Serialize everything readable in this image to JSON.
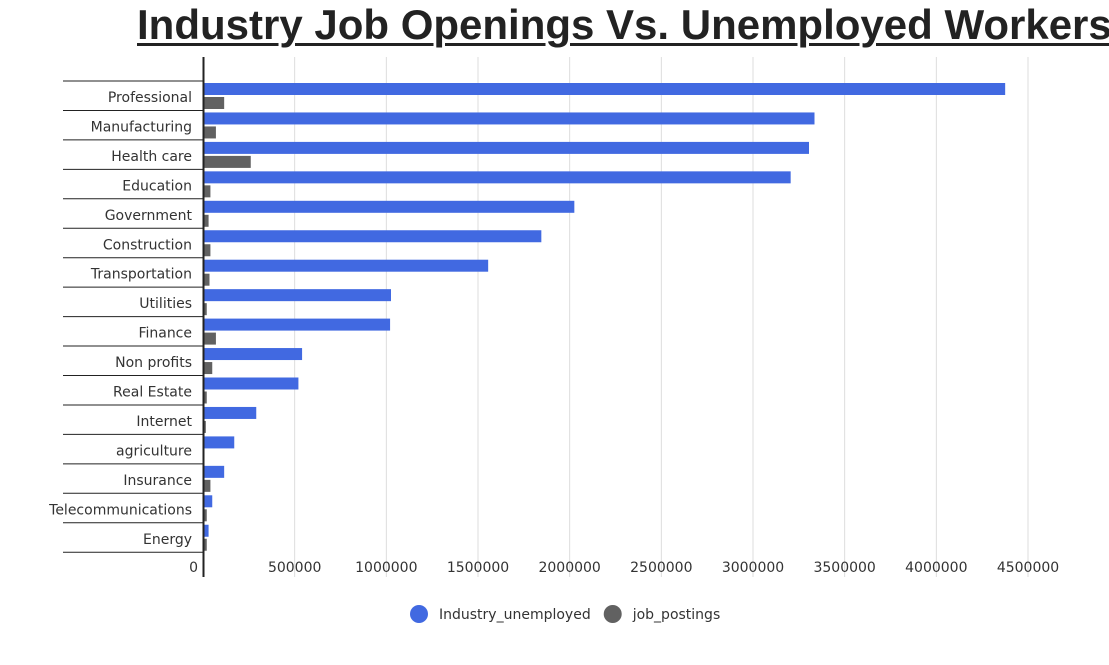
{
  "chart_data": {
    "type": "bar",
    "orientation": "horizontal",
    "title": "Industry Job Openings Vs. Unemployed Workers ",
    "xlabel": "",
    "ylabel": "",
    "xlim": [
      0,
      4500000
    ],
    "grid": true,
    "legend_position": "bottom",
    "x_ticks": [
      "0",
      "500000",
      "1000000",
      "1500000",
      "2000000",
      "2500000",
      "3000000",
      "3500000",
      "4000000",
      "4500000"
    ],
    "categories": [
      "Professional",
      "Manufacturing",
      "Health care",
      "Education",
      "Government",
      "Construction",
      "Transportation",
      "Utilities",
      "Finance",
      "Non profits",
      "Real Estate",
      "Internet",
      "agriculture",
      "Insurance",
      "Telecommunications",
      "Energy"
    ],
    "series": [
      {
        "name": "Industry_unemployed",
        "color": "#4169e1",
        "values": [
          4370000,
          3330000,
          3300000,
          3200000,
          2020000,
          1840000,
          1550000,
          1020000,
          1015000,
          535000,
          515000,
          285000,
          165000,
          110000,
          45000,
          25000
        ]
      },
      {
        "name": "job_postings",
        "color": "#616161",
        "values": [
          110000,
          65000,
          255000,
          35000,
          25000,
          35000,
          30000,
          15000,
          65000,
          45000,
          15000,
          10000,
          0,
          35000,
          15000,
          15000
        ]
      }
    ]
  }
}
